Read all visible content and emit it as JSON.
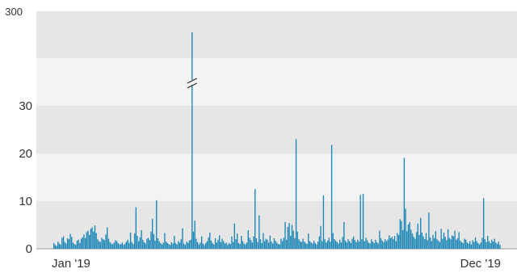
{
  "chart_data": {
    "type": "bar",
    "title": "",
    "xlabel": "",
    "ylabel": "",
    "axis_break": true,
    "broken_range": [
      35,
      300
    ],
    "y_ticks_lower": [
      "0",
      "10",
      "20",
      "30"
    ],
    "y_ticks_upper": [
      "300"
    ],
    "ylim_lower": [
      0,
      35
    ],
    "ylim_upper_top": 300,
    "x_tick_labels": [
      "Jan '19",
      "Dec '19"
    ],
    "grid": true,
    "bar_color": "#1a86b5",
    "band_colors": [
      "#e6e6e6",
      "#f3f3f3"
    ],
    "x_start": "2019-01-01",
    "interval": "daily",
    "values": [
      1.2,
      0.8,
      0.6,
      1.5,
      1.1,
      0.9,
      2.3,
      2.6,
      1.4,
      1.1,
      2.2,
      2.0,
      3.1,
      2.5,
      1.3,
      1.0,
      0.8,
      1.7,
      1.9,
      1.2,
      2.1,
      2.4,
      3.0,
      2.2,
      3.5,
      3.8,
      2.9,
      4.2,
      4.5,
      3.6,
      4.9,
      3.3,
      2.0,
      1.6,
      1.4,
      2.3,
      2.0,
      1.8,
      3.0,
      4.5,
      2.1,
      1.4,
      1.1,
      0.9,
      1.3,
      1.8,
      1.6,
      1.2,
      0.9,
      1.0,
      1.3,
      0.8,
      1.1,
      1.5,
      1.9,
      1.2,
      3.4,
      1.4,
      1.0,
      3.2,
      8.7,
      2.7,
      1.6,
      2.4,
      3.9,
      1.9,
      1.4,
      1.1,
      2.1,
      2.3,
      1.8,
      3.6,
      6.3,
      3.1,
      1.7,
      10.2,
      2.2,
      1.6,
      1.2,
      0.9,
      1.3,
      3.3,
      1.5,
      1.2,
      1.0,
      0.8,
      1.4,
      1.1,
      2.7,
      1.2,
      0.9,
      1.6,
      1.3,
      2.0,
      4.3,
      1.1,
      0.8,
      1.5,
      1.2,
      1.7,
      1.9,
      270,
      3.6,
      5.9,
      2.1,
      1.4,
      0.9,
      1.3,
      2.6,
      1.1,
      0.8,
      1.2,
      1.6,
      2.4,
      3.4,
      1.7,
      1.2,
      0.9,
      2.2,
      1.3,
      1.9,
      2.8,
      1.4,
      2.1,
      1.6,
      1.1,
      1.3,
      0.8,
      1.2,
      1.0,
      2.6,
      1.4,
      5.3,
      2.0,
      3.2,
      1.2,
      1.0,
      2.7,
      1.6,
      1.1,
      0.9,
      1.3,
      3.9,
      2.3,
      1.8,
      1.3,
      2.6,
      12.5,
      2.2,
      1.4,
      7.0,
      2.0,
      1.2,
      3.3,
      1.6,
      2.1,
      1.9,
      1.3,
      2.8,
      1.5,
      1.1,
      2.2,
      1.7,
      1.3,
      1.0,
      0.9,
      2.1,
      1.6,
      2.3,
      5.6,
      1.9,
      4.6,
      5.4,
      2.7,
      5.0,
      3.8,
      2.2,
      23.0,
      3.6,
      2.0,
      1.6,
      1.4,
      2.1,
      1.5,
      1.2,
      1.0,
      3.2,
      1.6,
      1.3,
      1.1,
      1.7,
      1.2,
      0.9,
      1.5,
      2.6,
      4.8,
      1.6,
      11.2,
      2.0,
      1.3,
      1.7,
      2.3,
      1.5,
      21.8,
      3.3,
      2.0,
      1.7,
      1.4,
      1.1,
      1.9,
      1.3,
      2.5,
      5.6,
      1.7,
      1.3,
      2.0,
      1.6,
      1.2,
      2.1,
      2.6,
      1.8,
      1.4,
      1.9,
      1.5,
      11.3,
      2.0,
      11.5,
      1.6,
      2.3,
      1.8,
      1.3,
      1.1,
      2.0,
      1.5,
      1.2,
      1.9,
      1.4,
      1.1,
      3.8,
      2.2,
      1.7,
      1.4,
      2.0,
      1.6,
      1.9,
      2.8,
      2.2,
      2.5,
      2.0,
      2.7,
      1.6,
      3.3,
      2.9,
      6.2,
      5.8,
      3.9,
      19.1,
      8.4,
      3.7,
      5.1,
      5.6,
      4.0,
      3.2,
      2.5,
      2.1,
      3.5,
      5.3,
      2.9,
      6.5,
      3.4,
      2.6,
      2.0,
      3.3,
      1.8,
      7.6,
      2.4,
      1.6,
      2.9,
      2.2,
      3.7,
      2.0,
      1.7,
      1.4,
      4.2,
      2.1,
      3.4,
      2.5,
      1.8,
      4.1,
      2.3,
      2.0,
      2.8,
      2.6,
      3.8,
      1.9,
      2.2,
      3.5,
      1.7,
      1.4,
      1.2,
      2.1,
      1.9,
      1.3,
      1.1,
      1.6,
      0.9,
      1.8,
      1.4,
      2.4,
      1.6,
      1.2,
      0.9,
      1.3,
      2.3,
      10.6,
      2.0,
      1.4,
      2.7,
      1.6,
      1.2,
      1.9,
      1.5,
      2.1,
      1.3,
      1.0,
      1.5,
      0.8
    ]
  }
}
